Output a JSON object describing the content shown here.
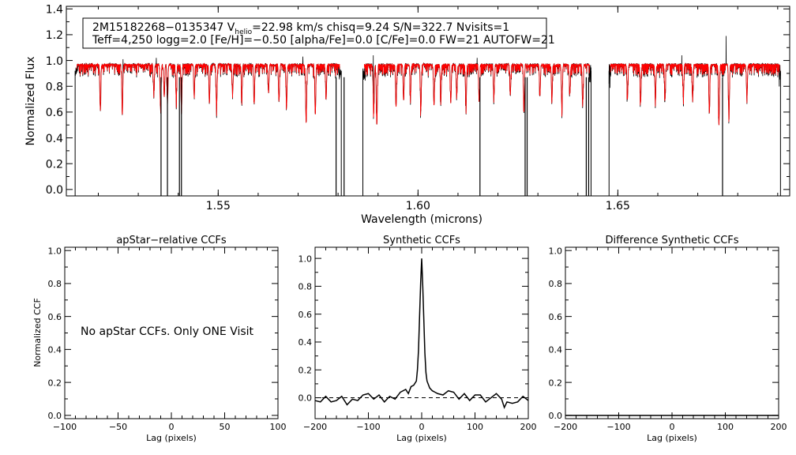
{
  "colors": {
    "observed": "#000000",
    "model": "#ff0000",
    "dashed_baseline": "#000000"
  },
  "chart_data": [
    {
      "id": "spectrum",
      "type": "line",
      "title": "",
      "info_box": {
        "line1_parts": [
          "2M15182268−0135347  V",
          "helio",
          "=22.98 km/s  chisq=9.24  S/N=322.7  Nvisits=1"
        ],
        "line2": "Teff=4,250 logg=2.0 [Fe/H]=−0.50 [alpha/Fe]=0.0 [C/Fe]=0.0 FW=21 AUTOFW=21"
      },
      "xlabel": "Wavelength (microns)",
      "ylabel": "Normalized Flux",
      "xlim": [
        1.512,
        1.693
      ],
      "ylim": [
        -0.05,
        1.42
      ],
      "xticks": [
        1.55,
        1.6,
        1.65
      ],
      "xtick_labels": [
        "1.55",
        "1.60",
        "1.65"
      ],
      "yticks": [
        0.0,
        0.2,
        0.4,
        0.6,
        0.8,
        1.0,
        1.2,
        1.4
      ],
      "ytick_labels": [
        "0.0",
        "0.2",
        "0.4",
        "0.6",
        "0.8",
        "1.0",
        "1.2",
        "1.4"
      ],
      "chips": [
        {
          "start": 1.5142,
          "end": 1.5808
        },
        {
          "start": 1.5862,
          "end": 1.6433
        },
        {
          "start": 1.6478,
          "end": 1.6907
        }
      ],
      "continuum": 0.97,
      "absorption_lines": [
        {
          "x": 1.5205,
          "depth": 0.33,
          "model": true
        },
        {
          "x": 1.526,
          "depth": 0.38,
          "model": true
        },
        {
          "x": 1.5339,
          "depth": 0.22,
          "model": true
        },
        {
          "x": 1.5356,
          "depth": 0.35,
          "model": true
        },
        {
          "x": 1.5365,
          "depth": 0.25,
          "model": true
        },
        {
          "x": 1.5373,
          "depth": 0.28,
          "model": true
        },
        {
          "x": 1.5395,
          "depth": 0.27,
          "model": true
        },
        {
          "x": 1.5408,
          "depth": 0.36,
          "model": true
        },
        {
          "x": 1.544,
          "depth": 0.24,
          "model": true
        },
        {
          "x": 1.5478,
          "depth": 0.3,
          "model": true
        },
        {
          "x": 1.5496,
          "depth": 0.34,
          "model": true
        },
        {
          "x": 1.5536,
          "depth": 0.22,
          "model": true
        },
        {
          "x": 1.5559,
          "depth": 0.26,
          "model": true
        },
        {
          "x": 1.559,
          "depth": 0.3,
          "model": true
        },
        {
          "x": 1.5626,
          "depth": 0.22,
          "model": true
        },
        {
          "x": 1.5652,
          "depth": 0.29,
          "model": true
        },
        {
          "x": 1.5671,
          "depth": 0.33,
          "model": true
        },
        {
          "x": 1.572,
          "depth": 0.45,
          "model": true
        },
        {
          "x": 1.5743,
          "depth": 0.39,
          "model": true
        },
        {
          "x": 1.577,
          "depth": 0.27,
          "model": true
        },
        {
          "x": 1.5889,
          "depth": 0.39,
          "model": true
        },
        {
          "x": 1.5897,
          "depth": 0.47,
          "model": true
        },
        {
          "x": 1.5945,
          "depth": 0.33,
          "model": true
        },
        {
          "x": 1.5964,
          "depth": 0.28,
          "model": true
        },
        {
          "x": 1.5981,
          "depth": 0.25,
          "model": true
        },
        {
          "x": 1.6007,
          "depth": 0.36,
          "model": true
        },
        {
          "x": 1.604,
          "depth": 0.32,
          "model": true
        },
        {
          "x": 1.6057,
          "depth": 0.27,
          "model": true
        },
        {
          "x": 1.6082,
          "depth": 0.3,
          "model": true
        },
        {
          "x": 1.6097,
          "depth": 0.24,
          "model": true
        },
        {
          "x": 1.612,
          "depth": 0.34,
          "model": true
        },
        {
          "x": 1.6153,
          "depth": 0.29,
          "model": true
        },
        {
          "x": 1.619,
          "depth": 0.25,
          "model": true
        },
        {
          "x": 1.6231,
          "depth": 0.22,
          "model": true
        },
        {
          "x": 1.6265,
          "depth": 0.35,
          "model": true
        },
        {
          "x": 1.6305,
          "depth": 0.25,
          "model": true
        },
        {
          "x": 1.6335,
          "depth": 0.28,
          "model": true
        },
        {
          "x": 1.636,
          "depth": 0.33,
          "model": true
        },
        {
          "x": 1.638,
          "depth": 0.23,
          "model": true
        },
        {
          "x": 1.6412,
          "depth": 0.3,
          "model": true
        },
        {
          "x": 1.6524,
          "depth": 0.27,
          "model": true
        },
        {
          "x": 1.6557,
          "depth": 0.3,
          "model": true
        },
        {
          "x": 1.6594,
          "depth": 0.29,
          "model": true
        },
        {
          "x": 1.6618,
          "depth": 0.26,
          "model": true
        },
        {
          "x": 1.6664,
          "depth": 0.24,
          "model": true
        },
        {
          "x": 1.6687,
          "depth": 0.27,
          "model": true
        },
        {
          "x": 1.6729,
          "depth": 0.38,
          "model": true
        },
        {
          "x": 1.6753,
          "depth": 0.47,
          "model": true
        },
        {
          "x": 1.6778,
          "depth": 0.4,
          "model": true
        },
        {
          "x": 1.6823,
          "depth": 0.26,
          "model": true
        }
      ],
      "masked_pixels": [
        1.5357,
        1.5373,
        1.5403,
        1.5408,
        1.5795,
        1.5815,
        1.6155,
        1.6268,
        1.6273,
        1.6421,
        1.6427,
        1.6762
      ],
      "spikes": [
        {
          "x": 1.5262,
          "y": 1.01
        },
        {
          "x": 1.5345,
          "y": 1.02
        },
        {
          "x": 1.5712,
          "y": 1.03
        },
        {
          "x": 1.5888,
          "y": 1.04
        },
        {
          "x": 1.6148,
          "y": 1.02
        },
        {
          "x": 1.666,
          "y": 1.04
        },
        {
          "x": 1.6771,
          "y": 1.19
        }
      ]
    },
    {
      "id": "apstar-ccf",
      "type": "line",
      "title": "apStar−relative CCFs",
      "xlabel": "Lag (pixels)",
      "ylabel": "Normalized CCF",
      "xlim": [
        -100,
        100
      ],
      "ylim": [
        -0.02,
        1.02
      ],
      "xticks": [
        -100,
        -50,
        0,
        50,
        100
      ],
      "xtick_labels": [
        "−100",
        "−50",
        "0",
        "50",
        "100"
      ],
      "yticks": [
        0.0,
        0.2,
        0.4,
        0.6,
        0.8,
        1.0
      ],
      "ytick_labels": [
        "0.0",
        "0.2",
        "0.4",
        "0.6",
        "0.8",
        "1.0"
      ],
      "message": "No apStar CCFs.  Only ONE Visit",
      "series": []
    },
    {
      "id": "synthetic-ccf",
      "type": "line",
      "title": "Synthetic CCFs",
      "xlabel": "Lag (pixels)",
      "ylabel": "",
      "xlim": [
        -200,
        200
      ],
      "ylim": [
        -0.15,
        1.08
      ],
      "xticks": [
        -200,
        -100,
        0,
        100,
        200
      ],
      "xtick_labels": [
        "−200",
        "−100",
        "0",
        "100",
        "200"
      ],
      "yticks": [
        0.0,
        0.2,
        0.4,
        0.6,
        0.8,
        1.0
      ],
      "ytick_labels": [
        "0.0",
        "0.2",
        "0.4",
        "0.6",
        "0.8",
        "1.0"
      ],
      "baseline": 0.0,
      "series": [
        {
          "x": [
            -200,
            -190,
            -180,
            -170,
            -160,
            -150,
            -140,
            -130,
            -120,
            -110,
            -100,
            -90,
            -80,
            -70,
            -60,
            -50,
            -40,
            -30,
            -25,
            -20,
            -15,
            -10,
            -8,
            -6,
            -4,
            -2,
            0,
            2,
            4,
            6,
            8,
            10,
            15,
            20,
            25,
            30,
            40,
            50,
            60,
            70,
            80,
            90,
            100,
            110,
            120,
            130,
            140,
            150,
            155,
            160,
            170,
            180,
            190,
            200
          ],
          "y": [
            -0.02,
            -0.03,
            0.01,
            -0.03,
            -0.02,
            0.01,
            -0.05,
            -0.01,
            -0.02,
            0.02,
            0.03,
            -0.01,
            0.02,
            -0.03,
            0.01,
            -0.01,
            0.04,
            0.06,
            0.03,
            0.08,
            0.09,
            0.12,
            0.2,
            0.34,
            0.58,
            0.82,
            1.0,
            0.8,
            0.56,
            0.32,
            0.18,
            0.12,
            0.07,
            0.05,
            0.04,
            0.03,
            0.02,
            0.05,
            0.04,
            -0.01,
            0.03,
            -0.02,
            0.02,
            0.02,
            -0.03,
            0.0,
            0.03,
            -0.01,
            -0.07,
            -0.03,
            -0.04,
            -0.03,
            0.01,
            -0.02
          ]
        }
      ]
    },
    {
      "id": "difference-ccf",
      "type": "line",
      "title": "Difference Synthetic CCFs",
      "xlabel": "Lag (pixels)",
      "ylabel": "",
      "xlim": [
        -200,
        200
      ],
      "ylim": [
        -0.02,
        1.02
      ],
      "xticks": [
        -200,
        -100,
        0,
        100,
        200
      ],
      "xtick_labels": [
        "−200",
        "−100",
        "0",
        "100",
        "200"
      ],
      "yticks": [
        0.0,
        0.2,
        0.4,
        0.6,
        0.8,
        1.0
      ],
      "ytick_labels": [
        "0.0",
        "0.2",
        "0.4",
        "0.6",
        "0.8",
        "1.0"
      ],
      "series": [
        {
          "x": [
            -200,
            200
          ],
          "y": [
            0.0,
            0.0
          ]
        }
      ]
    }
  ]
}
